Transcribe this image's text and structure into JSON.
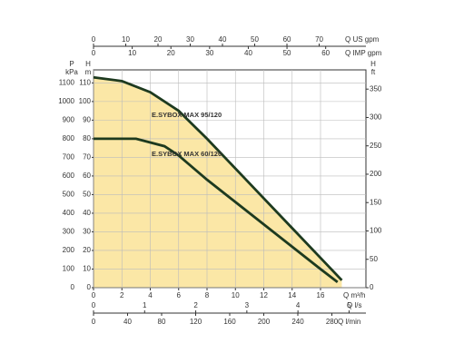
{
  "chart_data": {
    "type": "line",
    "series": [
      {
        "name": "E.SYBOX MAX 95/120",
        "color": "#1d3a1f",
        "x": [
          0,
          2,
          4,
          6,
          8,
          10,
          12,
          14,
          16,
          17.5
        ],
        "values": [
          113,
          111,
          105,
          95,
          80,
          64,
          48,
          32,
          16,
          4
        ]
      },
      {
        "name": "E.SYBOX MAX 60/120",
        "color": "#1d3a1f",
        "x": [
          0,
          3,
          5,
          6,
          8,
          10,
          12,
          14,
          16,
          17.2
        ],
        "values": [
          80,
          80,
          76,
          71,
          58,
          46,
          34,
          22,
          10,
          3
        ]
      }
    ],
    "fill_color": "#fbe7a6",
    "grid": true,
    "x_axes": [
      {
        "label": "Q m³/h",
        "xlim": [
          0,
          19.2
        ],
        "xticks": [
          0,
          2,
          4,
          6,
          8,
          10,
          12,
          14,
          16
        ]
      },
      {
        "label": "Q US gpm",
        "xlim": [
          0,
          84.5
        ],
        "xticks": [
          0,
          10,
          20,
          30,
          40,
          50,
          60,
          70
        ]
      },
      {
        "label": "Q IMP gpm",
        "xlim": [
          0,
          70.4
        ],
        "xticks": [
          0,
          10,
          20,
          30,
          40,
          50,
          60
        ]
      },
      {
        "label": "Q l/s",
        "xlim": [
          0,
          5.33
        ],
        "xticks": [
          0,
          1,
          2,
          3,
          4,
          5
        ]
      },
      {
        "label": "Q l/min",
        "xlim": [
          0,
          320
        ],
        "xticks": [
          0,
          40,
          80,
          120,
          160,
          200,
          240,
          280
        ]
      }
    ],
    "y_axes": [
      {
        "label": [
          "H",
          "m"
        ],
        "ylim": [
          0,
          117
        ],
        "yticks": [
          0,
          10,
          20,
          30,
          40,
          50,
          60,
          70,
          80,
          90,
          100,
          110
        ]
      },
      {
        "label": [
          "P",
          "kPa"
        ],
        "ylim": [
          0,
          1170
        ],
        "yticks": [
          0,
          100,
          200,
          300,
          400,
          500,
          600,
          700,
          800,
          900,
          1000,
          1100
        ]
      },
      {
        "label": [
          "H",
          "ft"
        ],
        "ylim": [
          0,
          383.9
        ],
        "yticks": [
          0,
          50,
          100,
          150,
          200,
          250,
          300,
          350
        ]
      }
    ]
  }
}
